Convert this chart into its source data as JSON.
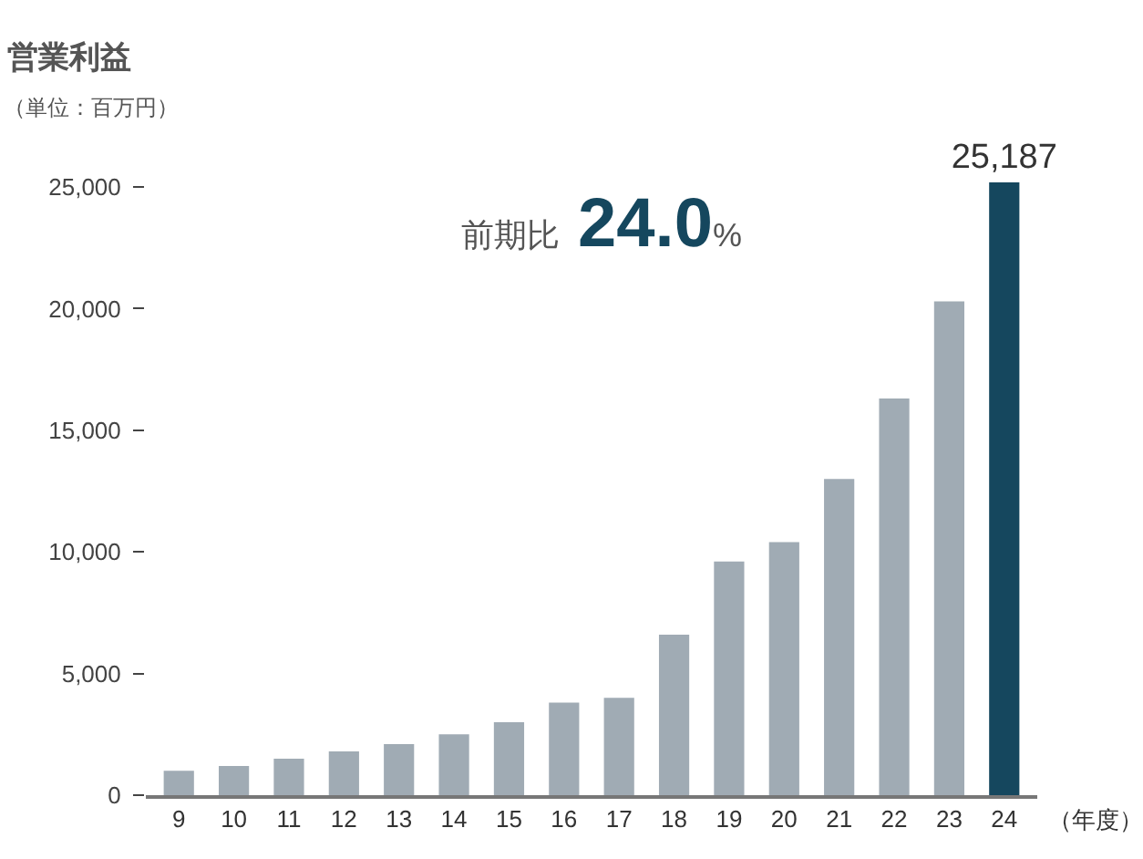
{
  "chart_data": {
    "type": "bar",
    "title": "営業利益",
    "subtitle": "（単位：百万円）",
    "xlabel": "（年度）",
    "categories": [
      "9",
      "10",
      "11",
      "12",
      "13",
      "14",
      "15",
      "16",
      "17",
      "18",
      "19",
      "20",
      "21",
      "22",
      "23",
      "24"
    ],
    "values": [
      1000,
      1200,
      1500,
      1800,
      2100,
      2500,
      3000,
      3800,
      4000,
      6600,
      9600,
      10400,
      13000,
      16300,
      20300,
      25187
    ],
    "colors": [
      "#a0abb4",
      "#a0abb4",
      "#a0abb4",
      "#a0abb4",
      "#a0abb4",
      "#a0abb4",
      "#a0abb4",
      "#a0abb4",
      "#a0abb4",
      "#a0abb4",
      "#a0abb4",
      "#a0abb4",
      "#a0abb4",
      "#a0abb4",
      "#a0abb4",
      "#15475e"
    ],
    "value_labels": [
      null,
      null,
      null,
      null,
      null,
      null,
      null,
      null,
      null,
      null,
      null,
      null,
      null,
      null,
      null,
      "25,187"
    ],
    "ylim": [
      0,
      25187
    ],
    "yticks": [
      {
        "value": 0,
        "label": "0"
      },
      {
        "value": 5000,
        "label": "5,000"
      },
      {
        "value": 10000,
        "label": "10,000"
      },
      {
        "value": 15000,
        "label": "15,000"
      },
      {
        "value": 20000,
        "label": "20,000"
      },
      {
        "value": 25000,
        "label": "25,000"
      }
    ],
    "annotations": [
      "前期比 24.0%"
    ]
  }
}
